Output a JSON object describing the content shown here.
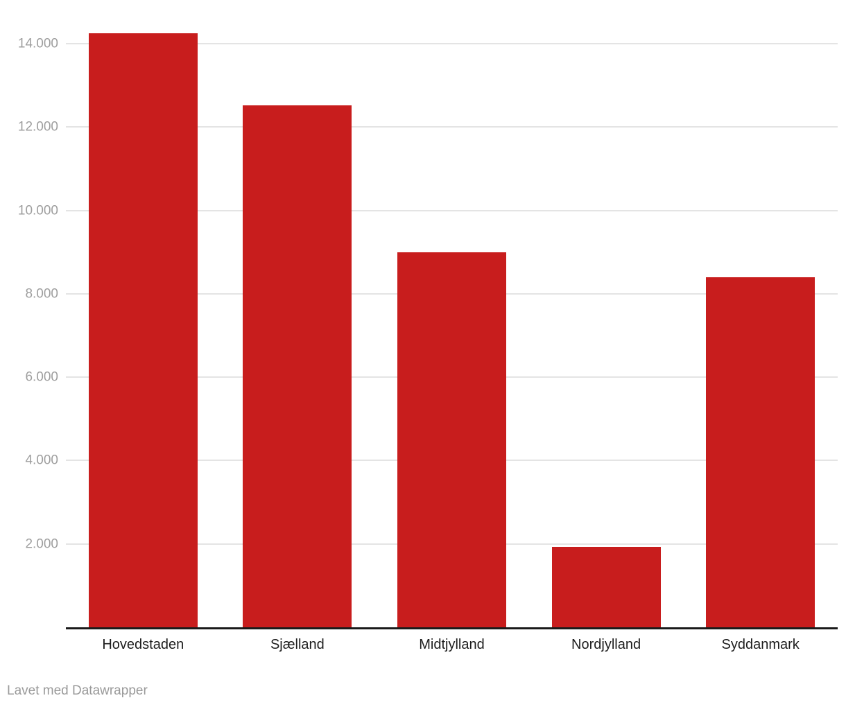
{
  "chart_data": {
    "type": "bar",
    "categories": [
      "Hovedstaden",
      "Sjælland",
      "Midtjylland",
      "Nordjylland",
      "Syddanmark"
    ],
    "values": [
      14250,
      12520,
      9000,
      1930,
      8400
    ],
    "title": "",
    "xlabel": "",
    "ylabel": "",
    "ylim": [
      0,
      14250
    ],
    "yticks": [
      2000,
      4000,
      6000,
      8000,
      10000,
      12000,
      14000
    ],
    "ytick_labels": [
      "2.000",
      "4.000",
      "6.000",
      "8.000",
      "10.000",
      "12.000",
      "14.000"
    ],
    "grid": true,
    "legend": "none",
    "bar_color": "#c81d1d"
  },
  "footer": {
    "credit": "Lavet med Datawrapper"
  },
  "colors": {
    "bar": "#c81d1d",
    "gridline": "#e4e4e4",
    "axis_line": "#1a1a1a",
    "y_tick_label": "#9e9e9e",
    "x_tick_label": "#1d1d1d",
    "footer_text": "#9a9a9a",
    "background": "#ffffff"
  }
}
